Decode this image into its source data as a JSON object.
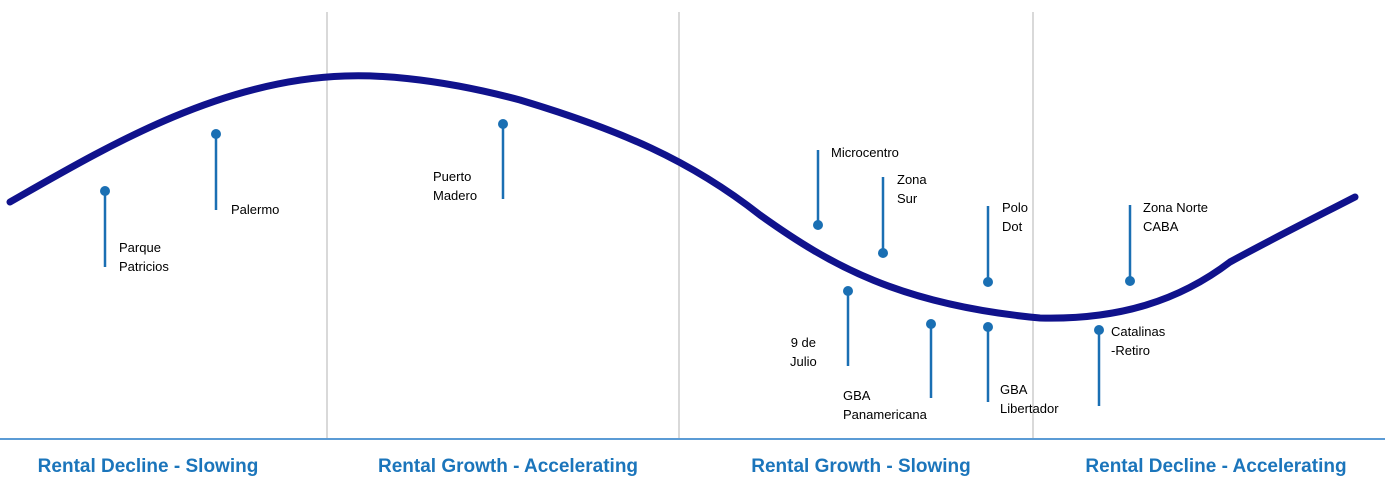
{
  "colors": {
    "curve": "#10128c",
    "marker": "#1a6fb3",
    "divider": "#d9d9d9",
    "baseline": "#5b9bd5",
    "phase_text": "#1b75bb"
  },
  "phases": [
    {
      "label": "Rental Decline - Slowing"
    },
    {
      "label": "Rental Growth - Accelerating"
    },
    {
      "label": "Rental Growth - Slowing"
    },
    {
      "label": "Rental Decline - Accelerating"
    }
  ],
  "markets": [
    {
      "label": "Parque\nPatricios"
    },
    {
      "label": "Palermo"
    },
    {
      "label": "Puerto\nMadero"
    },
    {
      "label": "Microcentro"
    },
    {
      "label": "Zona\nSur"
    },
    {
      "label": "Polo\nDot"
    },
    {
      "label": "Zona Norte\nCABA"
    },
    {
      "label": "9 de\nJulio"
    },
    {
      "label": "GBA\nPanamericana"
    },
    {
      "label": "GBA\nLibertador"
    },
    {
      "label": "Catalinas\n-Retiro"
    }
  ]
}
